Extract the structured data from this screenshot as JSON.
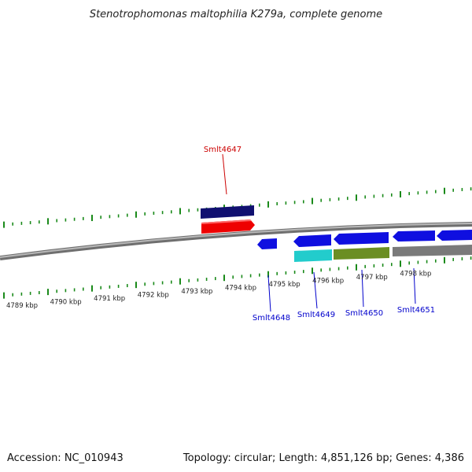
{
  "title": "Stenotrophomonas maltophilia K279a, complete genome",
  "footer": {
    "accession": "Accession: NC_010943",
    "summary": "Topology: circular; Length: 4,851,126 bp; Genes: 4,386"
  },
  "scale": {
    "ticks": [
      "4789 kbp",
      "4790 kbp",
      "4791 kbp",
      "4792 kbp",
      "4793 kbp",
      "4794 kbp",
      "4795 kbp",
      "4796 kbp",
      "4797 kbp",
      "4798 kbp"
    ]
  },
  "genes": [
    {
      "label": "Smlt4647",
      "color": "#cc0000"
    },
    {
      "label": "Smlt4648",
      "color": "#0000cc"
    },
    {
      "label": "Smlt4649",
      "color": "#0000cc"
    },
    {
      "label": "Smlt4650",
      "color": "#0000cc"
    },
    {
      "label": "Smlt4651",
      "color": "#0000cc"
    }
  ],
  "colors": {
    "backbone": "#8a8a8a",
    "tick": "#1a8a1a",
    "cds_forward": "#cc0000",
    "cds_reverse": "#0000cc",
    "gene_forward": "#101070",
    "gene_reverse": "#0f0fe0",
    "cyan_feature": "#22cccc",
    "olive_feature": "#6b8e23",
    "gray_feature": "#7a7a7a"
  }
}
